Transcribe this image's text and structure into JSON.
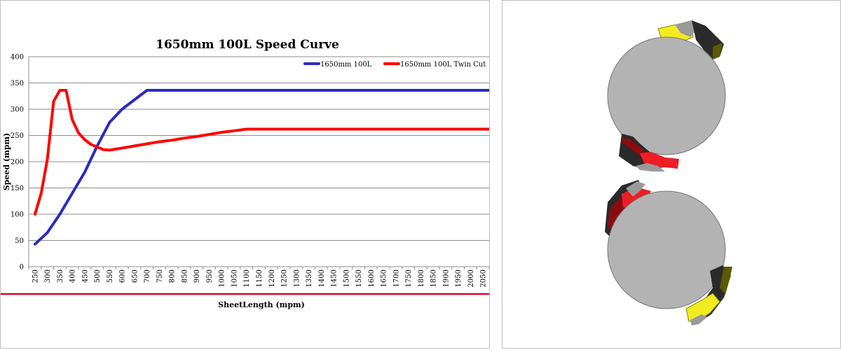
{
  "chart_data": {
    "type": "line",
    "title": "1650mm 100L Speed Curve",
    "xlabel": "SheetLength (mpm)",
    "ylabel": "Speed (mpm)",
    "ylim": [
      0,
      400
    ],
    "yticks": [
      "0",
      "50",
      "100",
      "150",
      "200",
      "250",
      "300",
      "350",
      "400"
    ],
    "categories": [
      "250",
      "300",
      "350",
      "400",
      "450",
      "500",
      "550",
      "600",
      "650",
      "700",
      "750",
      "800",
      "850",
      "900",
      "950",
      "1000",
      "1050",
      "1100",
      "1150",
      "1200",
      "1250",
      "1300",
      "1350",
      "1400",
      "1450",
      "1500",
      "1550",
      "1600",
      "1650",
      "1700",
      "1750",
      "1800",
      "1850",
      "1900",
      "1950",
      "2000",
      "2050"
    ],
    "grid": true,
    "legend_position": "top-right",
    "series": [
      {
        "name": "1650mm 100L",
        "color": "#2b2bbf",
        "points": [
          [
            250,
            43
          ],
          [
            300,
            65
          ],
          [
            350,
            100
          ],
          [
            400,
            140
          ],
          [
            450,
            180
          ],
          [
            500,
            230
          ],
          [
            550,
            275
          ],
          [
            600,
            300
          ],
          [
            650,
            318
          ],
          [
            700,
            336
          ],
          [
            750,
            336
          ],
          [
            800,
            336
          ],
          [
            1000,
            336
          ],
          [
            1500,
            336
          ],
          [
            2050,
            336
          ],
          [
            2100,
            336
          ]
        ]
      },
      {
        "name": "1650mm 100L Twin Cut",
        "color": "#ff0000",
        "points": [
          [
            250,
            100
          ],
          [
            275,
            140
          ],
          [
            300,
            205
          ],
          [
            325,
            315
          ],
          [
            350,
            336
          ],
          [
            375,
            336
          ],
          [
            400,
            280
          ],
          [
            425,
            255
          ],
          [
            450,
            242
          ],
          [
            475,
            233
          ],
          [
            500,
            228
          ],
          [
            525,
            223
          ],
          [
            550,
            222
          ],
          [
            600,
            226
          ],
          [
            650,
            230
          ],
          [
            700,
            234
          ],
          [
            750,
            238
          ],
          [
            800,
            241
          ],
          [
            850,
            245
          ],
          [
            900,
            248
          ],
          [
            950,
            252
          ],
          [
            1000,
            256
          ],
          [
            1050,
            259
          ],
          [
            1100,
            262
          ],
          [
            1500,
            262
          ],
          [
            2050,
            262
          ],
          [
            2100,
            262
          ]
        ]
      }
    ]
  },
  "right_image": {
    "label": "rotary cutter drums",
    "colors": [
      "#b3b3b3",
      "#ee1c25",
      "#f5ed1e",
      "#2a2a2a"
    ]
  }
}
